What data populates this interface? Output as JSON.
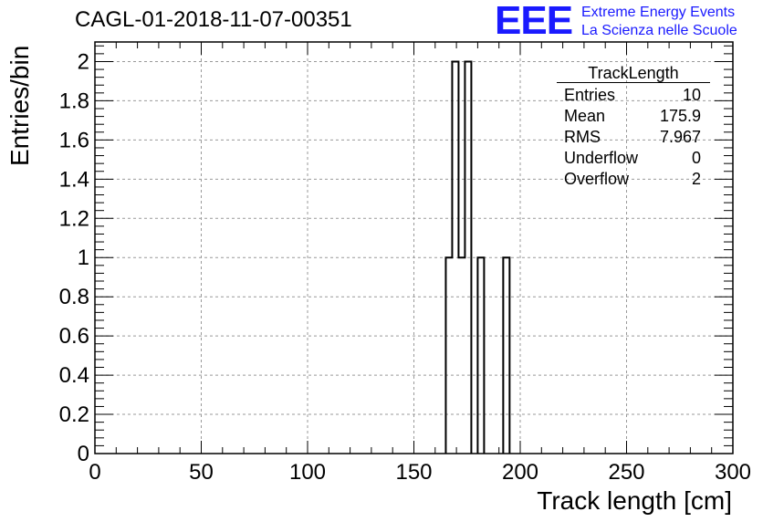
{
  "title": "CAGL-01-2018-11-07-00351",
  "logo": {
    "mark": "EEE",
    "line1": "Extreme Energy Events",
    "line2": "La Scienza nelle Scuole"
  },
  "stats_box": {
    "title": "TrackLength",
    "rows": [
      {
        "label": "Entries",
        "value": "10"
      },
      {
        "label": "Mean",
        "value": "175.9"
      },
      {
        "label": "RMS",
        "value": "7.967"
      },
      {
        "label": "Underflow",
        "value": "0"
      },
      {
        "label": "Overflow",
        "value": "2"
      }
    ]
  },
  "colors": {
    "logo": "#1a1aff",
    "grid": "#999999",
    "line": "#000000"
  },
  "chart_data": {
    "type": "bar",
    "xlabel": "Track length [cm]",
    "ylabel": "Entries/bin",
    "xlim": [
      0,
      300
    ],
    "ylim": [
      0,
      2.1
    ],
    "grid": true,
    "bin_width": 3,
    "bins": [
      {
        "x_low": 165,
        "x_high": 168,
        "count": 1
      },
      {
        "x_low": 168,
        "x_high": 171,
        "count": 2
      },
      {
        "x_low": 171,
        "x_high": 174,
        "count": 1
      },
      {
        "x_low": 174,
        "x_high": 177,
        "count": 2
      },
      {
        "x_low": 180,
        "x_high": 183,
        "count": 1
      },
      {
        "x_low": 192,
        "x_high": 195,
        "count": 1
      }
    ],
    "x_ticks": [
      "0",
      "50",
      "100",
      "150",
      "200",
      "250",
      "300"
    ],
    "y_ticks": [
      "0",
      "0.2",
      "0.4",
      "0.6",
      "0.8",
      "1",
      "1.2",
      "1.4",
      "1.6",
      "1.8",
      "2"
    ]
  }
}
